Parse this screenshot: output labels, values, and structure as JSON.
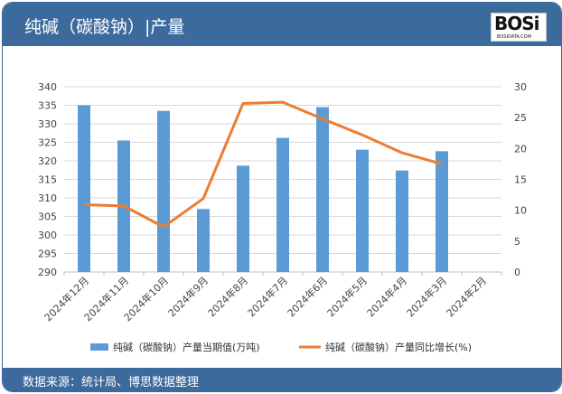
{
  "header": {
    "title": "纯碱（碳酸钠）|产量",
    "logo_text": "BOSi",
    "logo_sub": "BOSIDATA.COM"
  },
  "footer": {
    "source": "数据来源：统计局、博思数据整理"
  },
  "colors": {
    "bar": "#5b9bd5",
    "line": "#ed7d31",
    "header": "#3c6a9c"
  },
  "chart_data": {
    "type": "bar+line",
    "categories": [
      "2024年12月",
      "2024年11月",
      "2024年10月",
      "2024年9月",
      "2024年8月",
      "2024年7月",
      "2024年6月",
      "2024年5月",
      "2024年4月",
      "2024年3月",
      "2024年2月"
    ],
    "series": [
      {
        "name": "纯碱（碳酸钠）产量当期值(万吨)",
        "type": "bar",
        "axis": "left",
        "values": [
          335,
          325.5,
          333.5,
          307,
          318.7,
          326.2,
          334.5,
          323,
          317.4,
          322.6,
          null
        ]
      },
      {
        "name": "纯碱（碳酸钠）产量同比增长(%)",
        "type": "line",
        "axis": "right",
        "values": [
          10.9,
          10.7,
          7.3,
          11.9,
          27.3,
          27.5,
          24.8,
          22.2,
          19.3,
          17.5,
          null
        ]
      }
    ],
    "ylim_left": [
      290,
      340
    ],
    "yticks_left": [
      290,
      295,
      300,
      305,
      310,
      315,
      320,
      325,
      330,
      335,
      340
    ],
    "ylim_right": [
      0,
      30
    ],
    "yticks_right": [
      0,
      5,
      10,
      15,
      20,
      25,
      30
    ],
    "grid": true,
    "legend": "bottom"
  }
}
